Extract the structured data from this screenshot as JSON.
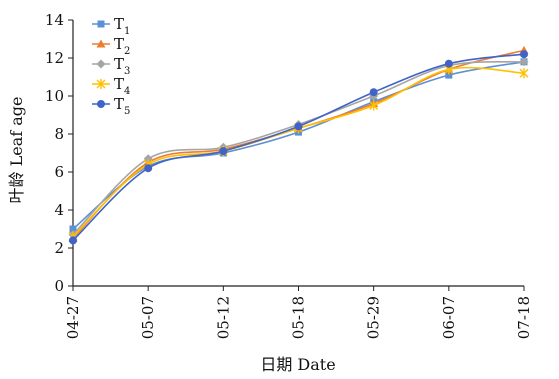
{
  "chart_data": {
    "type": "line",
    "xlabel": "日期 Date",
    "ylabel": "叶龄 Leaf age",
    "categories": [
      "04-27",
      "05-07",
      "05-12",
      "05-18",
      "05-29",
      "06-07",
      "07-18"
    ],
    "ylim": [
      0,
      14
    ],
    "yticks": [
      "0",
      "2",
      "4",
      "6",
      "8",
      "10",
      "12",
      "14"
    ],
    "grid": false,
    "legend_position": "top-left",
    "series": [
      {
        "name": "T",
        "sub": "1",
        "color": "#5b8fd6",
        "marker": "square",
        "values": [
          3.0,
          6.3,
          7.0,
          8.1,
          9.7,
          11.1,
          11.8
        ]
      },
      {
        "name": "T",
        "sub": "2",
        "color": "#ed7d31",
        "marker": "triangle",
        "values": [
          2.5,
          6.5,
          7.2,
          8.3,
          9.6,
          11.4,
          12.4
        ]
      },
      {
        "name": "T",
        "sub": "3",
        "color": "#a5a5a5",
        "marker": "diamond",
        "values": [
          2.7,
          6.7,
          7.3,
          8.5,
          10.0,
          11.6,
          11.8
        ]
      },
      {
        "name": "T",
        "sub": "4",
        "color": "#ffc000",
        "marker": "star",
        "values": [
          2.6,
          6.4,
          7.1,
          8.3,
          9.5,
          11.4,
          11.2
        ]
      },
      {
        "name": "T",
        "sub": "5",
        "color": "#3f63c6",
        "marker": "circle",
        "values": [
          2.4,
          6.2,
          7.1,
          8.4,
          10.2,
          11.7,
          12.2
        ]
      }
    ]
  }
}
